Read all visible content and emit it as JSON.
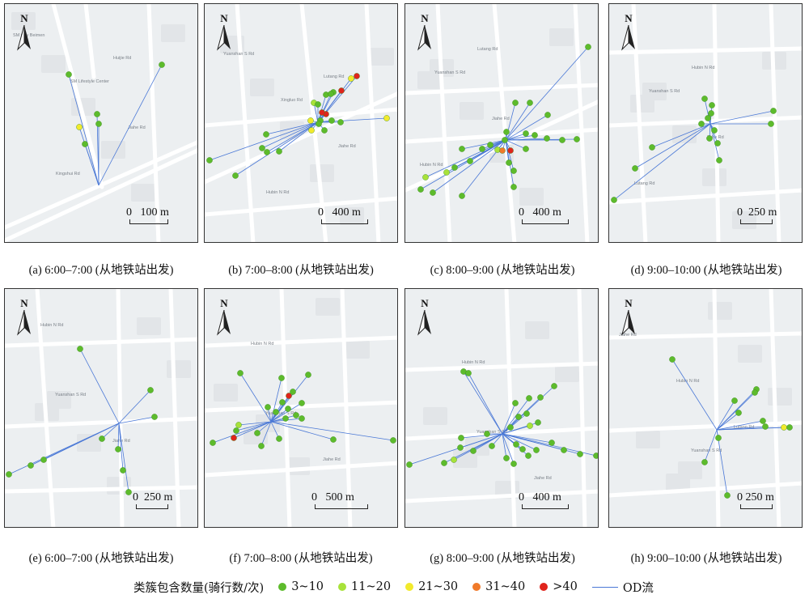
{
  "colors": {
    "bin_3_10": "#5dbb2c",
    "bin_11_20": "#a8e23a",
    "bin_21_30": "#f2ea2c",
    "bin_31_40": "#f07a2a",
    "bin_gt40": "#e0241c",
    "od_flow": "#4a78d6",
    "road_major": "#ffffff",
    "map_bg": "#eceff1"
  },
  "north_label": "N",
  "panels": [
    {
      "caption": "(a) 6:00–7:00 (从地铁站出发)",
      "scale_label": "0   100 m",
      "map_text": [
        "SM City Beimen",
        "SM Lifestyle Center",
        "Jiahe Rd",
        "Kingshui Rd",
        "Huijie Rd"
      ],
      "points": [
        [
          84,
          91,
          0
        ],
        [
          199,
          79,
          0
        ],
        [
          119,
          140,
          0
        ],
        [
          97,
          156,
          2
        ],
        [
          121,
          152,
          0
        ],
        [
          104,
          177,
          0
        ]
      ]
    },
    {
      "caption": "(b) 7:00–8:00 (从地铁站出发)",
      "scale_label": "0   400 m",
      "map_text": [
        "Yuanshan S Rd",
        "Xingluo Rd",
        "Jiahe Rd",
        "Hubin N Rd",
        "Lutang Rd"
      ],
      "points": [
        [
          440,
          93,
          4
        ],
        [
          433,
          96,
          2
        ],
        [
          421,
          111,
          4
        ],
        [
          411,
          113,
          0
        ],
        [
          402,
          116,
          0
        ],
        [
          408,
          115,
          0
        ],
        [
          387,
          126,
          1
        ],
        [
          392,
          128,
          0
        ],
        [
          402,
          140,
          4
        ],
        [
          397,
          138,
          4
        ],
        [
          383,
          148,
          2
        ],
        [
          395,
          148,
          0
        ],
        [
          400,
          160,
          0
        ],
        [
          384,
          160,
          2
        ],
        [
          477,
          145,
          2
        ],
        [
          409,
          148,
          0
        ],
        [
          420,
          150,
          0
        ],
        [
          323,
          182,
          0
        ],
        [
          329,
          187,
          0
        ],
        [
          344,
          186,
          0
        ],
        [
          290,
          216,
          0
        ],
        [
          258,
          197,
          0
        ],
        [
          328,
          165,
          0
        ],
        [
          393,
          152,
          0
        ]
      ]
    },
    {
      "caption": "(c) 8:00–9:00 (从地铁站出发)",
      "scale_label": "0   400 m",
      "map_text": [
        "Yuanshan S Rd",
        "Jiahe Rd",
        "Hubin N Rd",
        "Lutang Rd"
      ],
      "points": [
        [
          726,
          57,
          0
        ],
        [
          654,
          126,
          0
        ],
        [
          636,
          126,
          0
        ],
        [
          676,
          141,
          0
        ],
        [
          625,
          162,
          0
        ],
        [
          614,
          184,
          1
        ],
        [
          620,
          185,
          3
        ],
        [
          630,
          185,
          4
        ],
        [
          605,
          178,
          0
        ],
        [
          595,
          183,
          0
        ],
        [
          570,
          183,
          0
        ],
        [
          580,
          198,
          0
        ],
        [
          561,
          206,
          0
        ],
        [
          551,
          212,
          1
        ],
        [
          525,
          218,
          1
        ],
        [
          519,
          233,
          0
        ],
        [
          534,
          237,
          0
        ],
        [
          570,
          241,
          0
        ],
        [
          628,
          200,
          0
        ],
        [
          634,
          210,
          0
        ],
        [
          649,
          183,
          0
        ],
        [
          660,
          166,
          0
        ],
        [
          675,
          170,
          0
        ],
        [
          694,
          172,
          0
        ],
        [
          712,
          171,
          0
        ],
        [
          623,
          172,
          0
        ],
        [
          634,
          230,
          0
        ],
        [
          649,
          164,
          0
        ]
      ]
    },
    {
      "caption": "(d) 9:00–10:00 (从地铁站出发)",
      "scale_label": "0  250 m",
      "map_text": [
        "Yuanshan S Rd",
        "Jiahe Rd",
        "Lutang Rd",
        "Hubin N Rd"
      ],
      "points": [
        [
          870,
          121,
          0
        ],
        [
          879,
          129,
          0
        ],
        [
          874,
          145,
          0
        ],
        [
          866,
          152,
          0
        ],
        [
          882,
          160,
          0
        ],
        [
          876,
          170,
          0
        ],
        [
          886,
          176,
          0
        ],
        [
          955,
          136,
          0
        ],
        [
          952,
          152,
          0
        ],
        [
          805,
          181,
          0
        ],
        [
          784,
          207,
          0
        ],
        [
          758,
          246,
          0
        ],
        [
          888,
          197,
          0
        ],
        [
          878,
          139,
          0
        ]
      ]
    },
    {
      "caption": "(e) 6:00–7:00 (从地铁站出发)",
      "scale_label": "0  250 m",
      "map_text": [
        "Yuanshan S Rd",
        "Jiahe Rd",
        "Hubin N Rd"
      ],
      "points": [
        [
          98,
          430,
          0
        ],
        [
          185,
          481,
          0
        ],
        [
          190,
          514,
          0
        ],
        [
          125,
          541,
          0
        ],
        [
          145,
          554,
          0
        ],
        [
          151,
          580,
          0
        ],
        [
          158,
          607,
          0
        ],
        [
          53,
          567,
          0
        ],
        [
          37,
          574,
          0
        ],
        [
          10,
          585,
          0
        ]
      ]
    },
    {
      "caption": "(f) 7:00–8:00 (从地铁站出发)",
      "scale_label": "0   500 m",
      "map_text": [
        "Yuanshan S Rd",
        "Jiahe Rd",
        "Hubin N Rd"
      ],
      "points": [
        [
          296,
          460,
          0
        ],
        [
          347,
          466,
          0
        ],
        [
          380,
          462,
          0
        ],
        [
          356,
          488,
          4
        ],
        [
          348,
          496,
          0
        ],
        [
          361,
          483,
          0
        ],
        [
          372,
          497,
          0
        ],
        [
          330,
          502,
          0
        ],
        [
          340,
          508,
          0
        ],
        [
          352,
          516,
          0
        ],
        [
          372,
          516,
          0
        ],
        [
          294,
          524,
          1
        ],
        [
          291,
          531,
          0
        ],
        [
          288,
          540,
          4
        ],
        [
          262,
          546,
          0
        ],
        [
          317,
          534,
          0
        ],
        [
          344,
          541,
          0
        ],
        [
          322,
          550,
          0
        ],
        [
          411,
          542,
          0
        ],
        [
          485,
          543,
          0
        ],
        [
          365,
          512,
          0
        ],
        [
          355,
          504,
          0
        ]
      ]
    },
    {
      "caption": "(g) 8:00–9:00 (从地铁站出发)",
      "scale_label": "0   400 m",
      "map_text": [
        "Yuanshan S Rd",
        "Jiahe Rd",
        "Hubin N Rd"
      ],
      "points": [
        [
          572,
          458,
          0
        ],
        [
          578,
          460,
          0
        ],
        [
          653,
          491,
          0
        ],
        [
          667,
          490,
          0
        ],
        [
          684,
          476,
          0
        ],
        [
          636,
          497,
          0
        ],
        [
          650,
          510,
          0
        ],
        [
          654,
          525,
          1
        ],
        [
          664,
          521,
          0
        ],
        [
          640,
          514,
          0
        ],
        [
          630,
          527,
          0
        ],
        [
          569,
          540,
          0
        ],
        [
          568,
          552,
          0
        ],
        [
          584,
          556,
          0
        ],
        [
          560,
          567,
          1
        ],
        [
          548,
          571,
          0
        ],
        [
          637,
          548,
          0
        ],
        [
          645,
          554,
          0
        ],
        [
          652,
          562,
          0
        ],
        [
          662,
          555,
          0
        ],
        [
          681,
          546,
          0
        ],
        [
          696,
          555,
          0
        ],
        [
          716,
          560,
          0
        ],
        [
          736,
          562,
          0
        ],
        [
          607,
          550,
          0
        ],
        [
          601,
          535,
          0
        ],
        [
          505,
          573,
          0
        ],
        [
          625,
          565,
          0
        ],
        [
          634,
          572,
          0
        ]
      ]
    },
    {
      "caption": "(h) 9:00–10:00 (从地铁站出发)",
      "scale_label": "0 250 m",
      "map_text": [
        "Yuanshan S Rd",
        "Jiahe Rd",
        "Hubin N Rd",
        "Lutang Rd"
      ],
      "points": [
        [
          830,
          443,
          0
        ],
        [
          934,
          480,
          0
        ],
        [
          932,
          484,
          0
        ],
        [
          907,
          494,
          0
        ],
        [
          912,
          509,
          0
        ],
        [
          942,
          519,
          0
        ],
        [
          945,
          526,
          0
        ],
        [
          968,
          527,
          2
        ],
        [
          975,
          527,
          0
        ],
        [
          870,
          570,
          0
        ],
        [
          898,
          611,
          0
        ],
        [
          887,
          540,
          0
        ]
      ]
    }
  ],
  "legend": {
    "title": "类簇包含数量(骑行数/次)",
    "items": [
      {
        "label": "3~10",
        "color_key": "bin_3_10"
      },
      {
        "label": "11~20",
        "color_key": "bin_11_20"
      },
      {
        "label": "21~30",
        "color_key": "bin_21_30"
      },
      {
        "label": "31~40",
        "color_key": "bin_31_40"
      },
      {
        "label": ">40",
        "color_key": "bin_gt40"
      }
    ],
    "flow_label": "OD流"
  }
}
